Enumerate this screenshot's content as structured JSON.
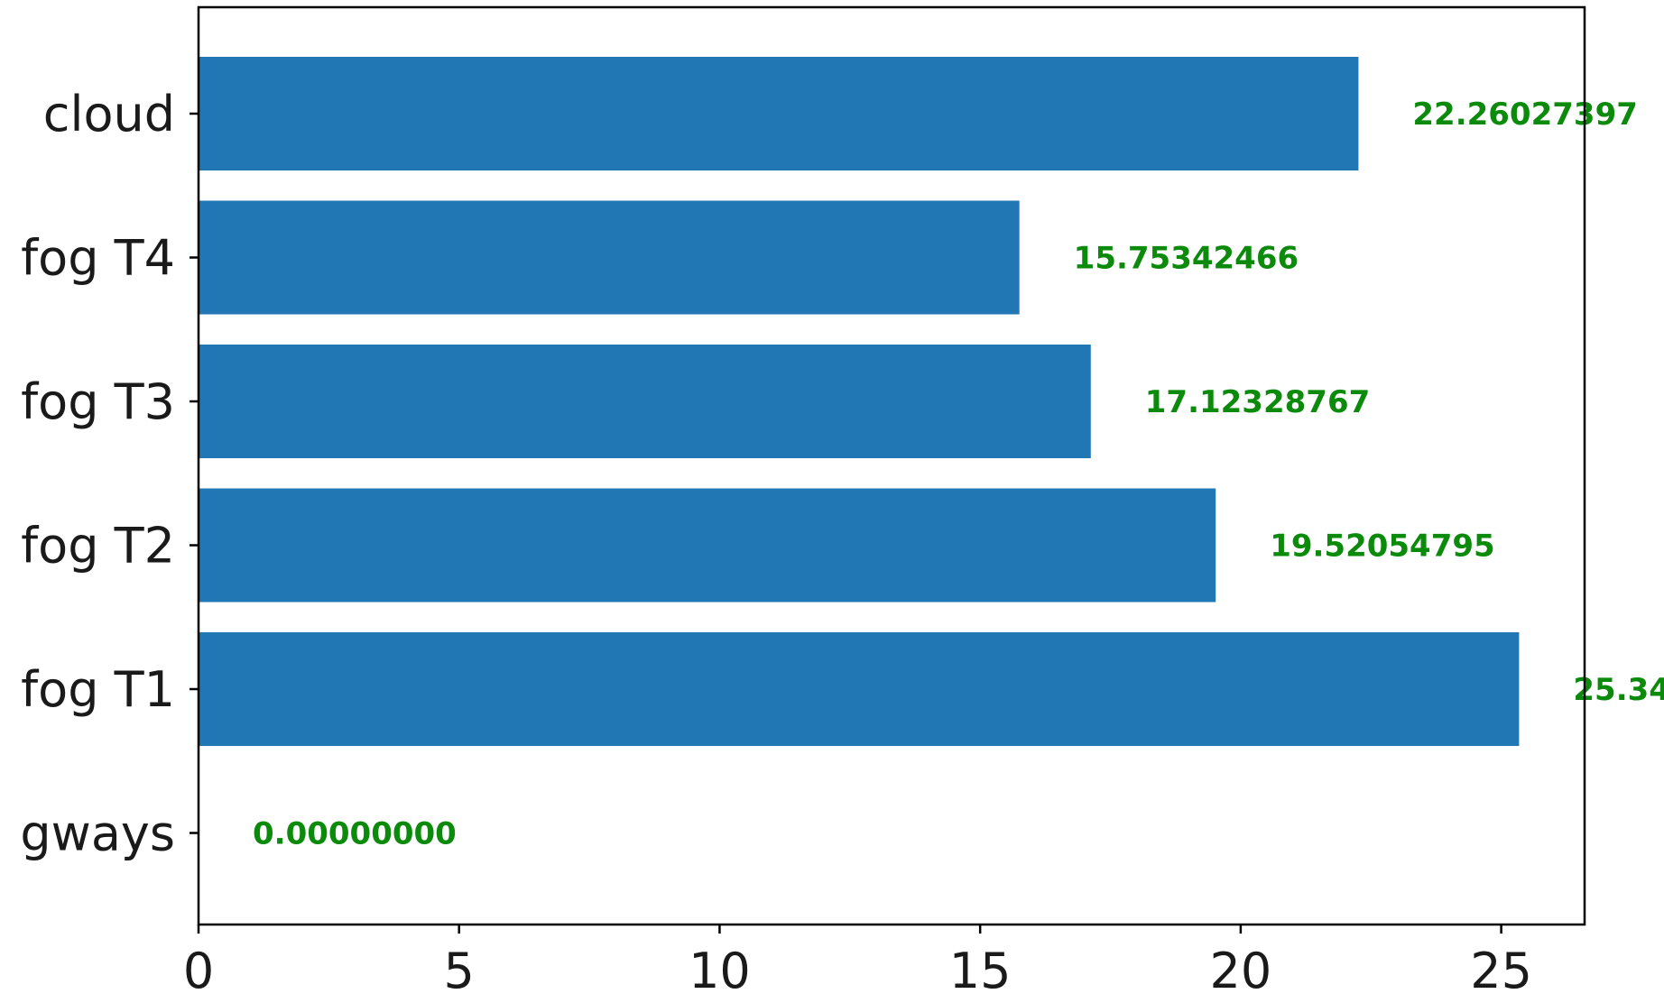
{
  "chart_data": {
    "type": "bar",
    "orientation": "horizontal",
    "categories": [
      "cloud",
      "fog T4",
      "fog T3",
      "fog T2",
      "fog T1",
      "gways"
    ],
    "values": [
      22.26027397,
      15.75342466,
      17.12328767,
      19.52054795,
      25.34246575,
      0.0
    ],
    "value_labels": [
      "22.26027397",
      "15.75342466",
      "17.12328767",
      "19.52054795",
      "25.34",
      "0.00000000"
    ],
    "x_ticks": [
      "0",
      "5",
      "10",
      "15",
      "20",
      "25"
    ],
    "x_tick_values": [
      0,
      5,
      10,
      15,
      20,
      25
    ],
    "xlim": [
      0,
      26.6
    ],
    "title": "",
    "xlabel": "",
    "ylabel": "",
    "grid": false,
    "bar_color": "#2176b4",
    "label_color": "#0b8a0b"
  }
}
